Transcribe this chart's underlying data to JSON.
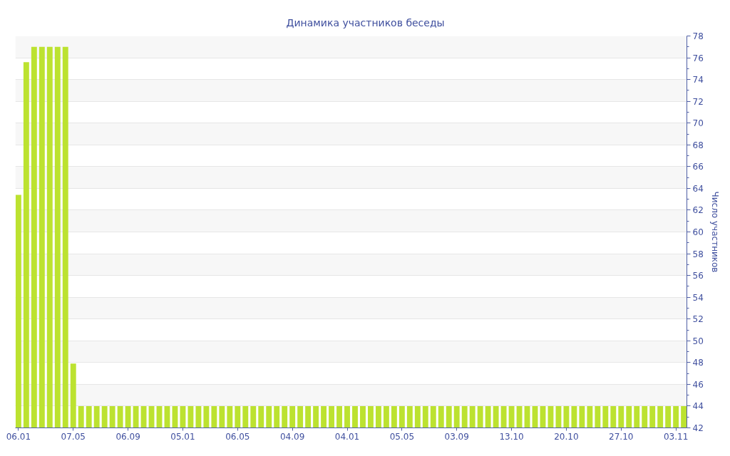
{
  "chart_data": {
    "type": "bar",
    "title": "Динамика участников беседы",
    "ylabel": "Число участников",
    "categories": [
      "06.01",
      null,
      null,
      null,
      null,
      null,
      null,
      "07.05",
      null,
      null,
      null,
      null,
      null,
      null,
      "06.09",
      null,
      null,
      null,
      null,
      null,
      null,
      "05.01",
      null,
      null,
      null,
      null,
      null,
      null,
      "06.05",
      null,
      null,
      null,
      null,
      null,
      null,
      "04.09",
      null,
      null,
      null,
      null,
      null,
      null,
      "04.01",
      null,
      null,
      null,
      null,
      null,
      null,
      "05.05",
      null,
      null,
      null,
      null,
      null,
      null,
      "03.09",
      null,
      null,
      null,
      null,
      null,
      null,
      "13.10",
      null,
      null,
      null,
      null,
      null,
      null,
      "20.10",
      null,
      null,
      null,
      null,
      null,
      null,
      "27.10",
      null,
      null,
      null,
      null,
      null,
      null,
      "03.11",
      null
    ],
    "values": [
      63.4,
      75.6,
      77,
      77,
      77,
      77,
      77,
      47.9,
      44,
      44,
      44,
      44,
      44,
      44,
      44,
      44,
      44,
      44,
      44,
      44,
      44,
      44,
      44,
      44,
      44,
      44,
      44,
      44,
      44,
      44,
      44,
      44,
      44,
      44,
      44,
      44,
      44,
      44,
      44,
      44,
      44,
      44,
      44,
      44,
      44,
      44,
      44,
      44,
      44,
      44,
      44,
      44,
      44,
      44,
      44,
      44,
      44,
      44,
      44,
      44,
      44,
      44,
      44,
      44,
      44,
      44,
      44,
      44,
      44,
      44,
      44,
      44,
      44,
      44,
      44,
      44,
      44,
      44,
      44,
      44,
      44,
      44,
      44,
      44,
      44,
      44
    ],
    "color": "#bce230",
    "ylim": [
      42,
      78
    ],
    "yticks": [
      42,
      44,
      46,
      48,
      50,
      52,
      54,
      56,
      58,
      60,
      62,
      64,
      66,
      68,
      70,
      72,
      74,
      76,
      78
    ],
    "grid": "y"
  }
}
